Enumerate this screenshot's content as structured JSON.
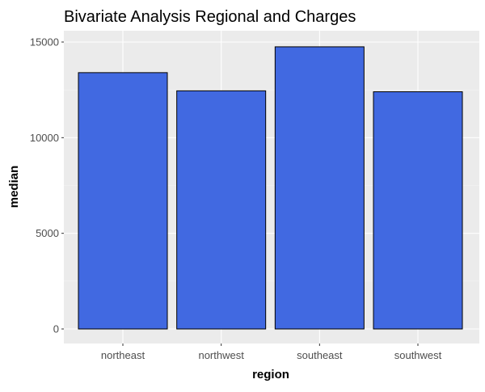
{
  "chart_data": {
    "type": "bar",
    "title": "Bivariate Analysis Regional and Charges",
    "xlabel": "region",
    "ylabel": "median",
    "categories": [
      "northeast",
      "northwest",
      "southeast",
      "southwest"
    ],
    "values": [
      13400,
      12450,
      14750,
      12400
    ],
    "ylim": [
      0,
      15000
    ],
    "yticks": [
      0,
      5000,
      10000,
      15000
    ],
    "ytick_labels": [
      "0",
      "5000",
      "10000",
      "15000"
    ],
    "grid": true,
    "legend": "none",
    "colors": {
      "bar_fill": "#4169E1",
      "bar_stroke": "#000000",
      "panel_background": "#EBEBEB",
      "grid_major": "#FFFFFF",
      "grid_minor": "#F5F5F5",
      "tick_text": "#4D4D4D",
      "axis_title": "#000000"
    }
  }
}
